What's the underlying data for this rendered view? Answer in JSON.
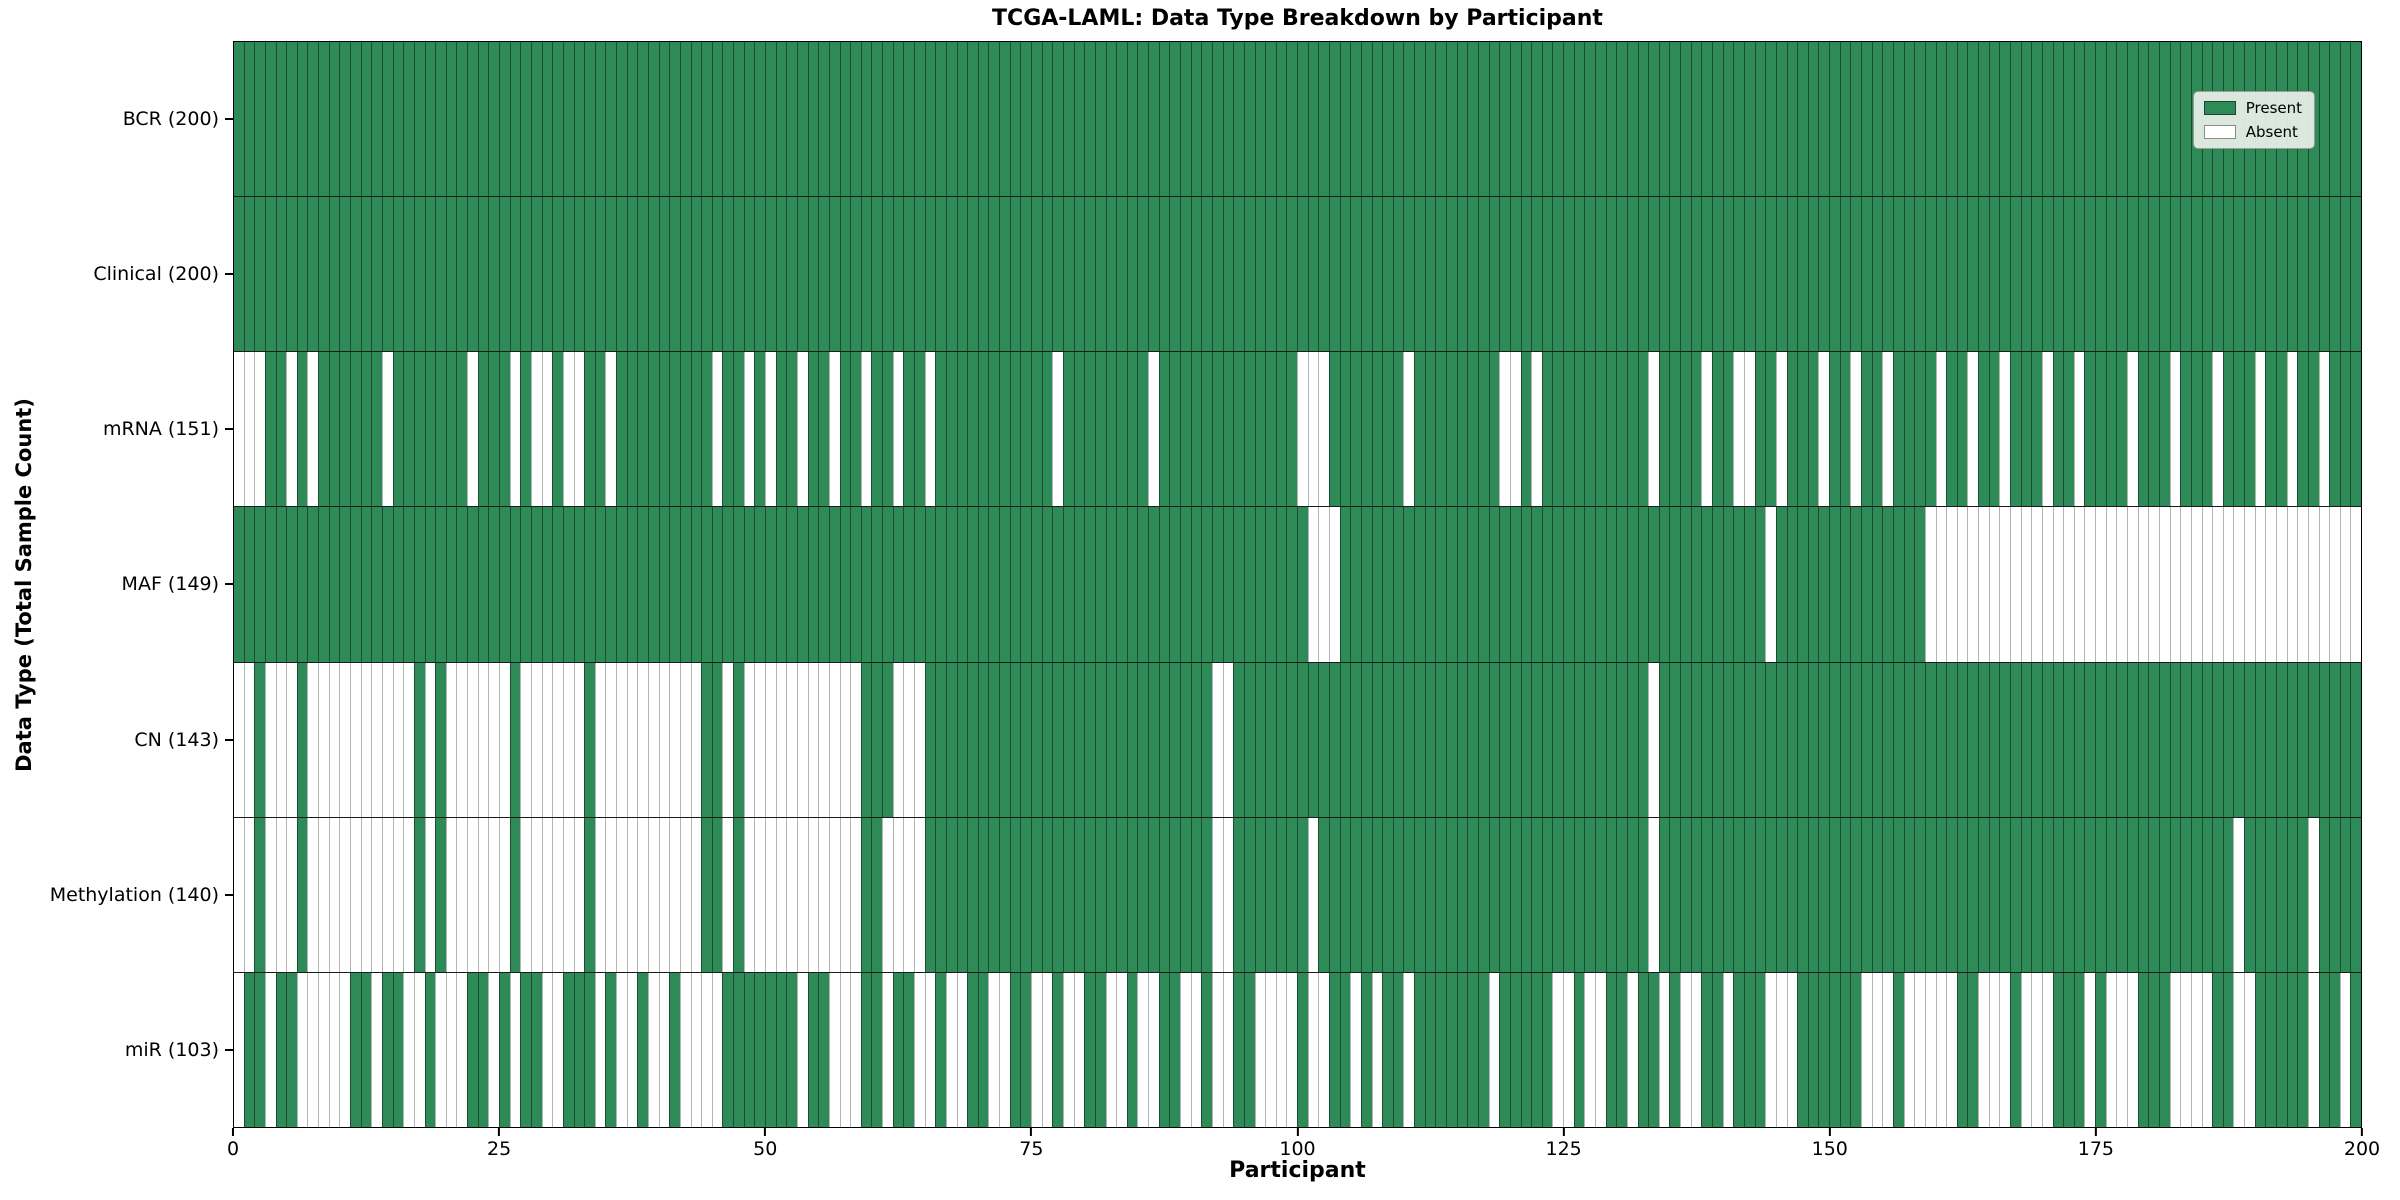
{
  "title": "TCGA-LAML: Data Type Breakdown by Participant",
  "xlabel": "Participant",
  "ylabel": "Data Type (Total Sample Count)",
  "colors": {
    "present": "#2e8b57",
    "absent": "#ffffff"
  },
  "legend": {
    "position": "upper-right",
    "entries": [
      {
        "label": "Present",
        "color": "#2e8b57"
      },
      {
        "label": "Absent",
        "color": "#ffffff"
      }
    ]
  },
  "x_ticks": [
    0,
    25,
    50,
    75,
    100,
    125,
    150,
    175,
    200
  ],
  "chart_data": {
    "type": "heatmap",
    "x_axis": {
      "label": "Participant",
      "range": [
        0,
        200
      ],
      "ticks": [
        0,
        25,
        50,
        75,
        100,
        125,
        150,
        175,
        200
      ]
    },
    "y_axis": {
      "label": "Data Type (Total Sample Count)"
    },
    "n_participants": 200,
    "cell_values": {
      "1": "Present",
      "0": "Absent"
    },
    "grid": false,
    "rows": [
      {
        "name": "BCR",
        "total": 200,
        "label": "BCR (200)",
        "presence": "11111111111111111111111111111111111111111111111111111111111111111111111111111111111111111111111111111111111111111111111111111111111111111111111111111111111111111111111111111111111111111111111111111111"
      },
      {
        "name": "Clinical",
        "total": 200,
        "label": "Clinical (200)",
        "presence": "11111111111111111111111111111111111111111111111111111111111111111111111111111111111111111111111111111111111111111111111111111111111111111111111111111111111111111111111111111111111111111111111111111111"
      },
      {
        "name": "mRNA",
        "total": 151,
        "label": "mRNA (151)",
        "presence": "00011010111111011111110111010010011011111111101101011011011011011011111111111011111111011111111111110001111111011111111001011111111110111101100110111011011011110110110111011011110111011101110110110111"
      },
      {
        "name": "MAF",
        "total": 149,
        "label": "MAF (149)",
        "presence": "11111111111111111111111111111111111111111111111111111111111111111111111111111111111111111111111111111000111111111111111111111111111111111111111101111111111111100000000000000000000000000000000000000000"
      },
      {
        "name": "CN",
        "total": 143,
        "label": "CN (143)",
        "presence": "00100010000000000101000000100000010000000000110100000000000111000111111111111111111111111111001111111111111111111111111111111111111110111111111111111111111111111111111111111111111111111111111111111111"
      },
      {
        "name": "Methylation",
        "total": 140,
        "label": "Methylation (140)",
        "presence": "00100010000000000101000000100000010000000000110100000000000110000111111111111111111111111111001111111011111111111111111111111111111110111111111111111111111111111111111111111111111111111111011111101111"
      },
      {
        "name": "miR",
        "total": 103,
        "label": "miR (103)",
        "presence": "01101100000110110010001101011001110100100100001111111011000110110010011001100100110010011001001100001001101011011111110111110010011011010011011100011111100010000011000100011101000111000011001111101101"
      }
    ]
  }
}
